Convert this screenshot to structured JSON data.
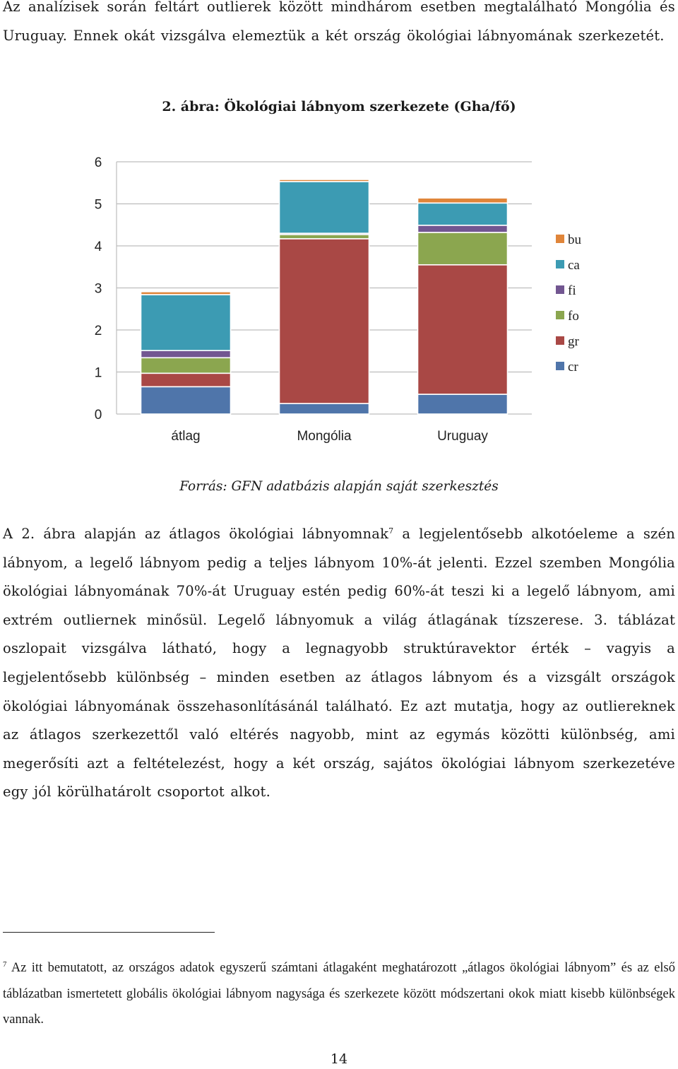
{
  "intro_paragraph": "Az analízisek során feltárt outlierek között mindhárom esetben megtalálható Mongólia és Uruguay. Ennek okát vizsgálva elemeztük a két ország ökológiai lábnyomának szerkezetét.",
  "figure": {
    "caption": "2. ábra: Ökológiai lábnyom szerkezete (Gha/fő)",
    "source": "Forrás: GFN adatbázis alapján saját szerkesztés"
  },
  "colors": {
    "cr": "#4F75AA",
    "gr": "#A94845",
    "fo": "#8BA64F",
    "fi": "#725691",
    "ca": "#3C9BB3",
    "bu": "#E0853A"
  },
  "chart_data": {
    "type": "bar",
    "stacked": true,
    "categories": [
      "átlag",
      "Mongólia",
      "Uruguay"
    ],
    "series": [
      {
        "name": "cr",
        "values": [
          0.65,
          0.25,
          0.47
        ]
      },
      {
        "name": "gr",
        "values": [
          0.32,
          3.92,
          3.08
        ]
      },
      {
        "name": "fo",
        "values": [
          0.37,
          0.1,
          0.77
        ]
      },
      {
        "name": "fi",
        "values": [
          0.17,
          0.03,
          0.17
        ]
      },
      {
        "name": "ca",
        "values": [
          1.33,
          1.23,
          0.53
        ]
      },
      {
        "name": "bu",
        "values": [
          0.07,
          0.05,
          0.12
        ]
      }
    ],
    "y_ticks": [
      "0",
      "1",
      "2",
      "3",
      "4",
      "5",
      "6"
    ],
    "ylim": [
      0,
      6
    ],
    "grid": true,
    "legend_position": "right",
    "legend_order": [
      "bu",
      "ca",
      "fi",
      "fo",
      "gr",
      "cr"
    ]
  },
  "main_paragraph": {
    "before_sup": "A 2. ábra alapján az átlagos ökológiai lábnyomnak",
    "sup": "7",
    "after_sup": " a legjelentősebb alkotóeleme a szén lábnyom, a legelő lábnyom pedig a teljes lábnyom 10%-át jelenti. Ezzel szemben Mongólia ökológiai lábnyomának 70%-át Uruguay estén pedig 60%-át teszi ki a legelő lábnyom, ami extrém outliernek minősül. Legelő lábnyomuk a világ átlagának tízszerese. 3. táblázat oszlopait vizsgálva látható, hogy a legnagyobb struktúravektor érték – vagyis a legjelentősebb különbség – minden esetben az átlagos lábnyom és a vizsgált országok ökológiai lábnyomának összehasonlításánál található. Ez azt mutatja, hogy az outliereknek az átlagos szerkezettől való eltérés nagyobb, mint az egymás közötti különbség, ami megerősíti azt a feltételezést, hogy a két ország, sajátos ökológiai lábnyom szerkezetéve egy jól körülhatárolt csoportot alkot."
  },
  "footnote": {
    "mark": "7",
    "text": " Az itt bemutatott, az országos adatok egyszerű számtani átlagaként meghatározott „átlagos ökológiai lábnyom” és az első táblázatban ismertetett globális ökológiai lábnyom nagysága és szerkezete között módszertani okok miatt kisebb különbségek vannak."
  },
  "page_number": "14"
}
